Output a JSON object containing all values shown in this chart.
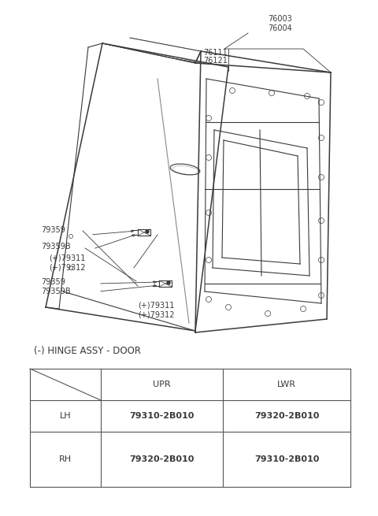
{
  "bg_color": "#ffffff",
  "fig_width": 4.8,
  "fig_height": 6.55,
  "dpi": 100,
  "table_title": "(-) HINGE ASSY - DOOR",
  "table_rows": [
    [
      "LH",
      "79310-2B010",
      "79320-2B010"
    ],
    [
      "RH",
      "79320-2B010",
      "79310-2B010"
    ]
  ],
  "line_color": "#3a3a3a",
  "label_color": "#3a3a3a",
  "label_fontsize": 7.0,
  "table_fontsize": 8.0
}
